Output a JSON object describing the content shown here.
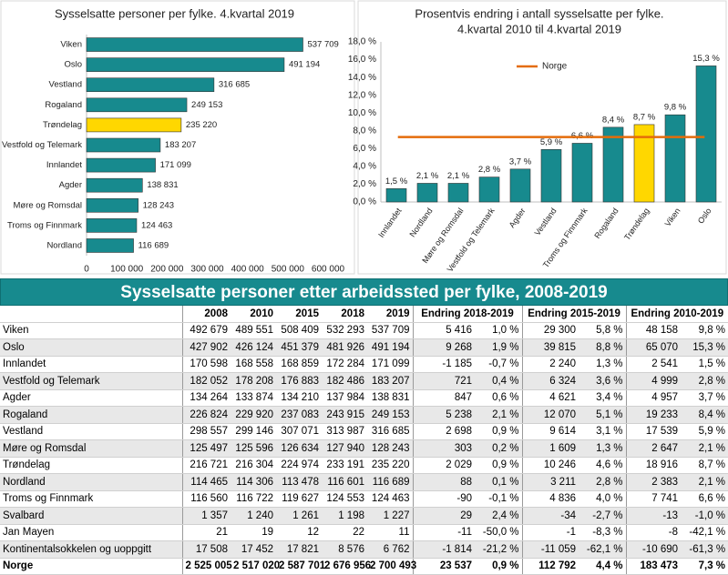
{
  "chart_data": [
    {
      "type": "hbar",
      "title": "Sysselsatte personer per fylke. 4.kvartal 2019",
      "categories": [
        "Viken",
        "Oslo",
        "Vestland",
        "Rogaland",
        "Trøndelag",
        "Vestfold og Telemark",
        "Innlandet",
        "Agder",
        "Møre og Romsdal",
        "Troms og Finnmark",
        "Nordland"
      ],
      "values": [
        537709,
        491194,
        316685,
        249153,
        235220,
        183207,
        171099,
        138831,
        128243,
        124463,
        116689
      ],
      "value_labels": [
        "537 709",
        "491 194",
        "316 685",
        "249 153",
        "235 220",
        "183 207",
        "171 099",
        "138 831",
        "128 243",
        "124 463",
        "116 689"
      ],
      "colors": [
        "#178a8e",
        "#178a8e",
        "#178a8e",
        "#178a8e",
        "#ffd700",
        "#178a8e",
        "#178a8e",
        "#178a8e",
        "#178a8e",
        "#178a8e",
        "#178a8e"
      ],
      "xlim": [
        0,
        600000
      ],
      "xticks": [
        0,
        {
          "value": 100000,
          "label": "100 000"
        },
        {
          "value": 200000,
          "label": "200 000"
        },
        {
          "value": 300000,
          "label": "300 000"
        },
        {
          "value": 400000,
          "label": "400 000"
        },
        {
          "value": 500000,
          "label": "500 000"
        },
        {
          "value": 600000,
          "label": "600 000"
        }
      ]
    },
    {
      "type": "bar",
      "title": [
        "Prosentvis endring i antall sysselsatte per fylke.",
        "4.kvartal 2010 til 4.kvartal 2019"
      ],
      "categories": [
        "Innlandet",
        "Nordland",
        "Møre og Romsdal",
        "Vestfold og Telemark",
        "Agder",
        "Vestland",
        "Troms og Finnmark",
        "Rogaland",
        "Trøndelag",
        "Viken",
        "Oslo"
      ],
      "values": [
        1.5,
        2.1,
        2.1,
        2.8,
        3.7,
        5.9,
        6.6,
        8.4,
        8.7,
        9.8,
        15.3
      ],
      "value_labels": [
        "1,5 %",
        "2,1 %",
        "2,1 %",
        "2,8 %",
        "3,7 %",
        "5,9 %",
        "6,6 %",
        "8,4 %",
        "8,7 %",
        "9,8 %",
        "15,3 %"
      ],
      "colors": [
        "#178a8e",
        "#178a8e",
        "#178a8e",
        "#178a8e",
        "#178a8e",
        "#178a8e",
        "#178a8e",
        "#178a8e",
        "#ffd700",
        "#178a8e",
        "#178a8e"
      ],
      "reference_line": {
        "name": "Norge",
        "value": 7.3,
        "color": "#e46c0a"
      },
      "ylim": [
        0,
        18
      ],
      "yticks": [
        {
          "value": 0,
          "label": "0,0 %"
        },
        {
          "value": 2,
          "label": "2,0 %"
        },
        {
          "value": 4,
          "label": "4,0 %"
        },
        {
          "value": 6,
          "label": "6,0 %"
        },
        {
          "value": 8,
          "label": "8,0 %"
        },
        {
          "value": 10,
          "label": "10,0 %"
        },
        {
          "value": 12,
          "label": "12,0 %"
        },
        {
          "value": 14,
          "label": "14,0 %"
        },
        {
          "value": 16,
          "label": "16,0 %"
        },
        {
          "value": 18,
          "label": "18,0 %"
        }
      ]
    }
  ],
  "table": {
    "title": "Sysselsatte personer etter arbeidssted per fylke, 2008-2019",
    "columns": [
      "2008",
      "2010",
      "2015",
      "2018",
      "2019",
      "Endring 2018-2019",
      "Endring 2015-2019",
      "Endring 2010-2019"
    ],
    "rows": [
      [
        "Viken",
        "492 679",
        "489 551",
        "508 409",
        "532 293",
        "537 709",
        "5 416",
        "1,0 %",
        "29 300",
        "5,8 %",
        "48 158",
        "9,8 %"
      ],
      [
        "Oslo",
        "427 902",
        "426 124",
        "451 379",
        "481 926",
        "491 194",
        "9 268",
        "1,9 %",
        "39 815",
        "8,8 %",
        "65 070",
        "15,3 %"
      ],
      [
        "Innlandet",
        "170 598",
        "168 558",
        "168 859",
        "172 284",
        "171 099",
        "-1 185",
        "-0,7 %",
        "2 240",
        "1,3 %",
        "2 541",
        "1,5 %"
      ],
      [
        "Vestfold og Telemark",
        "182 052",
        "178 208",
        "176 883",
        "182 486",
        "183 207",
        "721",
        "0,4 %",
        "6 324",
        "3,6 %",
        "4 999",
        "2,8 %"
      ],
      [
        "Agder",
        "134 264",
        "133 874",
        "134 210",
        "137 984",
        "138 831",
        "847",
        "0,6 %",
        "4 621",
        "3,4 %",
        "4 957",
        "3,7 %"
      ],
      [
        "Rogaland",
        "226 824",
        "229 920",
        "237 083",
        "243 915",
        "249 153",
        "5 238",
        "2,1 %",
        "12 070",
        "5,1 %",
        "19 233",
        "8,4 %"
      ],
      [
        "Vestland",
        "298 557",
        "299 146",
        "307 071",
        "313 987",
        "316 685",
        "2 698",
        "0,9 %",
        "9 614",
        "3,1 %",
        "17 539",
        "5,9 %"
      ],
      [
        "Møre og Romsdal",
        "125 497",
        "125 596",
        "126 634",
        "127 940",
        "128 243",
        "303",
        "0,2 %",
        "1 609",
        "1,3 %",
        "2 647",
        "2,1 %"
      ],
      [
        "Trøndelag",
        "216 721",
        "216 304",
        "224 974",
        "233 191",
        "235 220",
        "2 029",
        "0,9 %",
        "10 246",
        "4,6 %",
        "18 916",
        "8,7 %"
      ],
      [
        "Nordland",
        "114 465",
        "114 306",
        "113 478",
        "116 601",
        "116 689",
        "88",
        "0,1 %",
        "3 211",
        "2,8 %",
        "2 383",
        "2,1 %"
      ],
      [
        "Troms og Finnmark",
        "116 560",
        "116 722",
        "119 627",
        "124 553",
        "124 463",
        "-90",
        "-0,1 %",
        "4 836",
        "4,0 %",
        "7 741",
        "6,6 %"
      ],
      [
        "Svalbard",
        "1 357",
        "1 240",
        "1 261",
        "1 198",
        "1 227",
        "29",
        "2,4 %",
        "-34",
        "-2,7 %",
        "-13",
        "-1,0 %"
      ],
      [
        "Jan Mayen",
        "21",
        "19",
        "12",
        "22",
        "11",
        "-11",
        "-50,0 %",
        "-1",
        "-8,3 %",
        "-8",
        "-42,1 %"
      ],
      [
        "Kontinentalsokkelen og uoppgitt",
        "17 508",
        "17 452",
        "17 821",
        "8 576",
        "6 762",
        "-1 814",
        "-21,2 %",
        "-11 059",
        "-62,1 %",
        "-10 690",
        "-61,3 %"
      ],
      [
        "Norge",
        "2 525 005",
        "2 517 020",
        "2 587 701",
        "2 676 956",
        "2 700 493",
        "23 537",
        "0,9 %",
        "112 792",
        "4,4 %",
        "183 473",
        "7,3 %"
      ]
    ]
  }
}
